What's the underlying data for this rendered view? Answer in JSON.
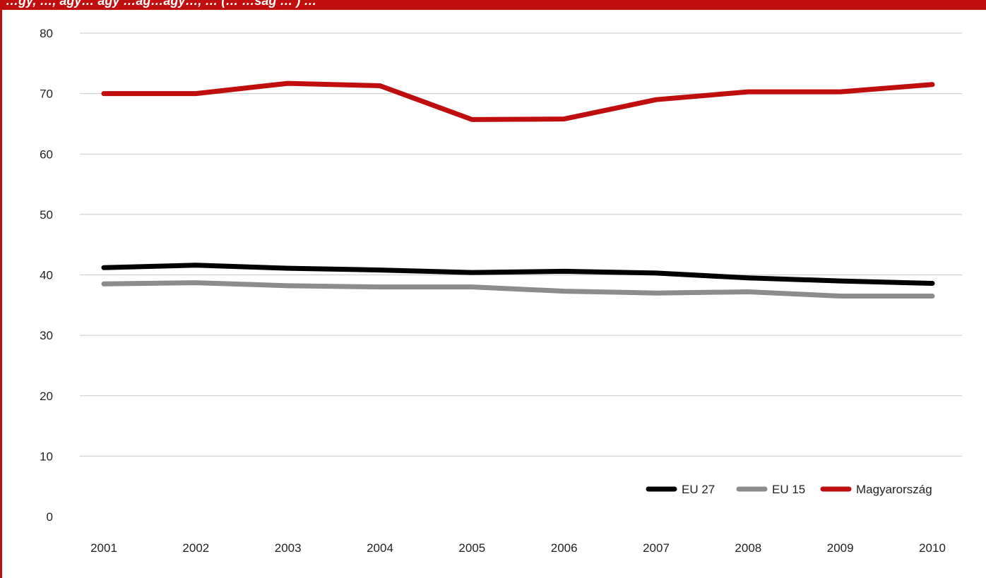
{
  "header": {
    "title": "…gy, …, agy… ágy …ág…ágy…, … (… …ság … ) …"
  },
  "colors": {
    "brand_red": "#c00d0d",
    "eu27": "#000000",
    "eu15": "#8c8c8c",
    "hungary": "#c00d0d",
    "grid": "#c8c8c8"
  },
  "chart_data": {
    "type": "line",
    "title": "",
    "xlabel": "",
    "ylabel": "",
    "x": [
      "2001",
      "2002",
      "2003",
      "2004",
      "2005",
      "2006",
      "2007",
      "2008",
      "2009",
      "2010"
    ],
    "ylim": [
      0,
      80
    ],
    "yticks": [
      0,
      10,
      20,
      30,
      40,
      50,
      60,
      70,
      80
    ],
    "grid": true,
    "legend_position": "bottom-right",
    "series": [
      {
        "name": "EU 27",
        "color": "#000000",
        "values": [
          41.2,
          41.6,
          41.1,
          40.8,
          40.4,
          40.6,
          40.3,
          39.5,
          39.0,
          38.6
        ]
      },
      {
        "name": "EU 15",
        "color": "#8c8c8c",
        "values": [
          38.5,
          38.7,
          38.2,
          38.0,
          38.0,
          37.3,
          37.0,
          37.2,
          36.5,
          36.5
        ]
      },
      {
        "name": "Magyarország",
        "color": "#c00d0d",
        "values": [
          70.0,
          70.0,
          71.7,
          71.3,
          65.7,
          65.8,
          69.0,
          70.3,
          70.3,
          71.5
        ]
      }
    ]
  }
}
